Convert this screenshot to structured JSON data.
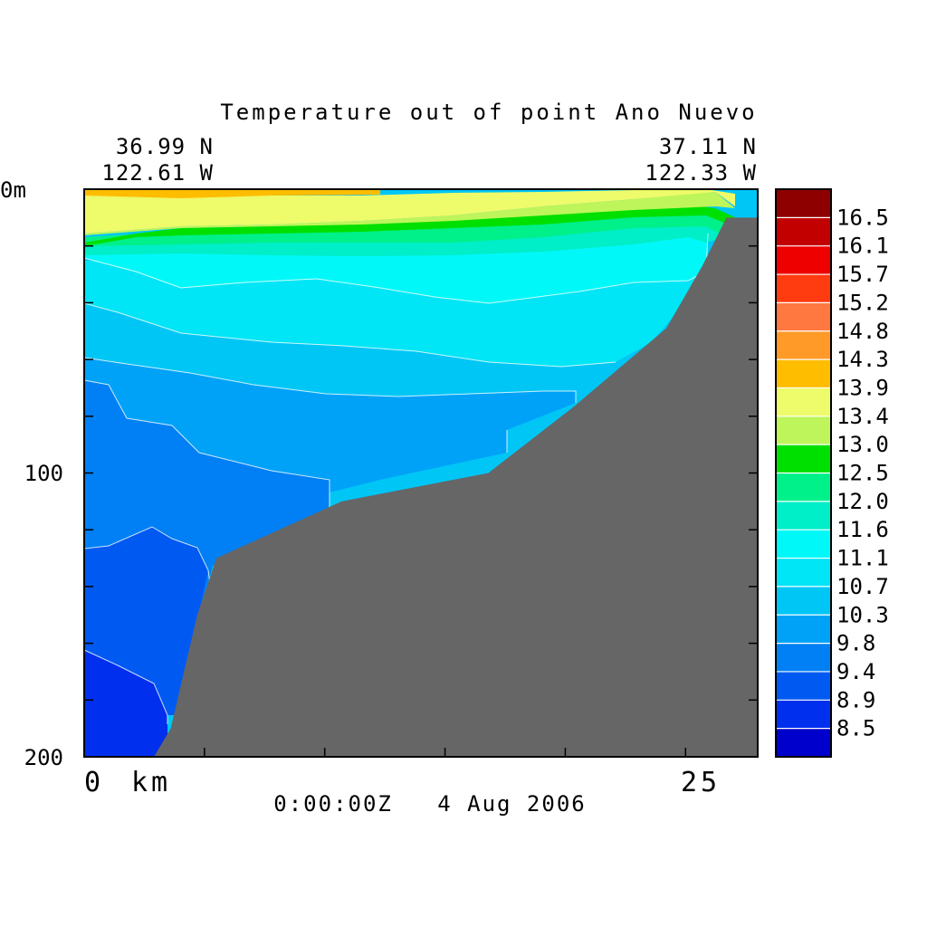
{
  "chart_data": {
    "type": "contour",
    "title": "Temperature out of point Ano Nuevo",
    "start_location": {
      "lat": "36.99 N",
      "lon": "122.61 W"
    },
    "end_location": {
      "lat": "37.11 N",
      "lon": "122.33 W"
    },
    "xlabel": "km",
    "x_range": [
      0,
      28
    ],
    "x_tick_labels": [
      "0",
      "25"
    ],
    "x_tick_values": [
      0,
      5,
      10,
      15,
      20,
      25
    ],
    "ylabel": "m",
    "y_range": [
      0,
      200
    ],
    "y_tick_labels": [
      "0m",
      "100",
      "200"
    ],
    "y_tick_values": [
      0,
      20,
      40,
      60,
      80,
      100,
      120,
      140,
      160,
      180,
      200
    ],
    "timestamp": "0:00:00Z   4 Aug 2006",
    "colorbar": {
      "labels": [
        "16.5",
        "16.1",
        "15.7",
        "15.2",
        "14.8",
        "14.3",
        "13.9",
        "13.4",
        "13.0",
        "12.5",
        "12.0",
        "11.6",
        "11.1",
        "10.7",
        "10.3",
        "9.8",
        "9.4",
        "8.9",
        "8.5"
      ],
      "colors": [
        "#8e0000",
        "#c20000",
        "#ee0000",
        "#ff3c10",
        "#ff7840",
        "#ff9a28",
        "#ffbd00",
        "#eefb6a",
        "#bdf55a",
        "#00e000",
        "#00f08a",
        "#00eec8",
        "#00f8f8",
        "#00e6f6",
        "#00c6f6",
        "#00a2f8",
        "#0080f4",
        "#005af2",
        "#0030ee",
        "#0000cc"
      ]
    },
    "bottom_color": "#666666",
    "bottom_depth_profile": {
      "x_km": [
        2.9,
        3.6,
        4.7,
        5.5,
        6.8,
        10.7,
        16.8,
        20.3,
        24.2,
        25.7,
        26.7,
        28
      ],
      "depth_m": [
        200,
        190,
        150,
        130,
        125,
        110,
        100,
        77,
        49,
        27,
        10,
        10
      ]
    }
  }
}
